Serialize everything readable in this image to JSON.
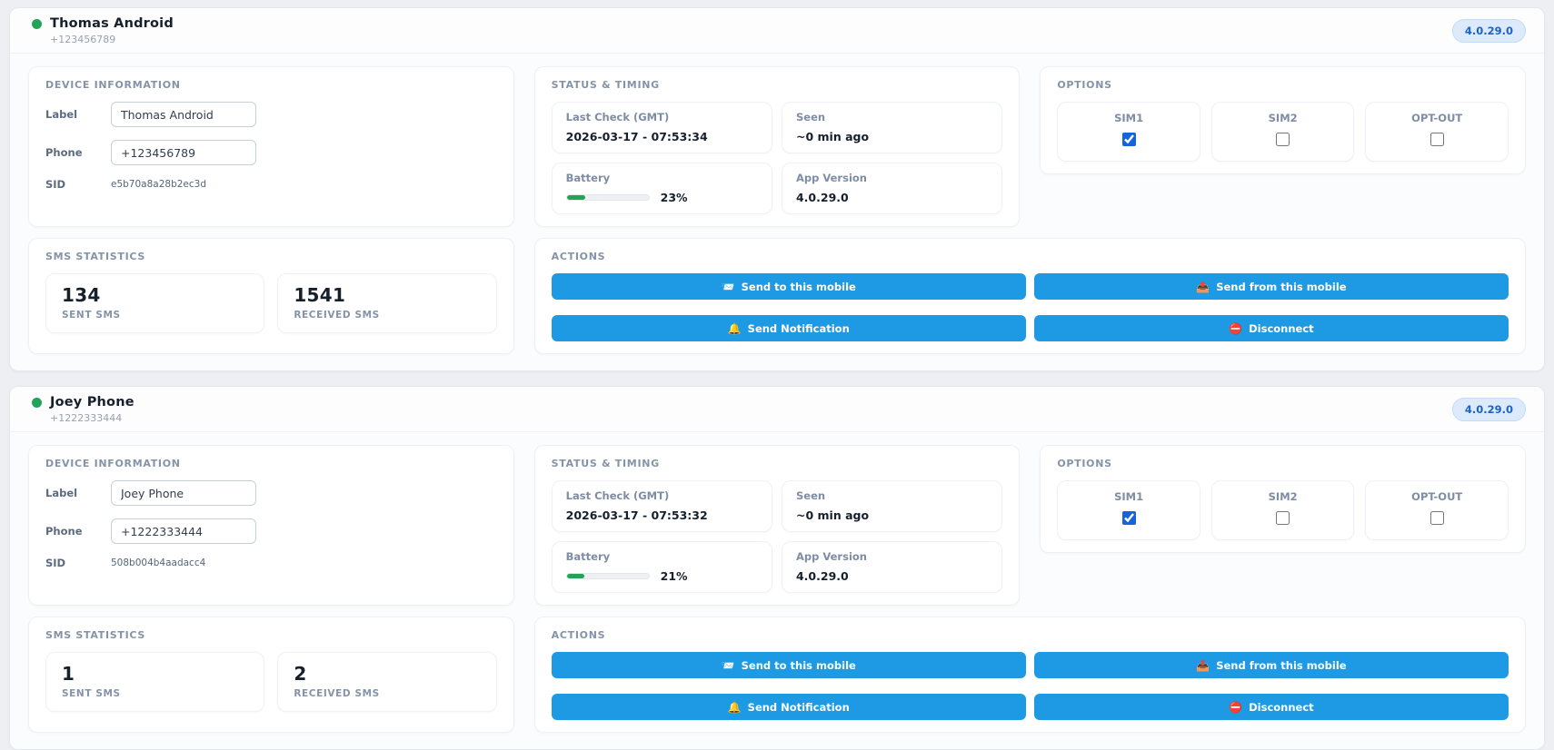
{
  "icons": {
    "send_to": "📨",
    "send_from": "📤",
    "notify": "🔔",
    "disconnect": "⛔"
  },
  "devices": [
    {
      "name": "Thomas Android",
      "phone": "+123456789",
      "version": "4.0.29.0",
      "device_info": {
        "title": "DEVICE INFORMATION",
        "label_label": "Label",
        "label_value": "Thomas Android",
        "phone_label": "Phone",
        "phone_value": "+123456789",
        "sid_label": "SID",
        "sid_value": "e5b70a8a28b2ec3d"
      },
      "status": {
        "title": "STATUS & TIMING",
        "last_check_label": "Last Check (GMT)",
        "last_check": "2026-03-17 - 07:53:34",
        "seen_label": "Seen",
        "seen": "~0 min ago",
        "battery_label": "Battery",
        "battery_percent": "23%",
        "app_version_label": "App Version",
        "app_version": "4.0.29.0"
      },
      "options": {
        "title": "OPTIONS",
        "sim1_label": "SIM1",
        "sim1_checked": true,
        "sim2_label": "SIM2",
        "sim2_checked": false,
        "optout_label": "OPT-OUT",
        "optout_checked": false
      },
      "sms": {
        "title": "SMS STATISTICS",
        "sent_value": "134",
        "sent_label": "SENT SMS",
        "received_value": "1541",
        "received_label": "RECEIVED SMS"
      },
      "actions": {
        "title": "ACTIONS",
        "send_to": "Send to this mobile",
        "send_from": "Send from this mobile",
        "notify": "Send Notification",
        "disconnect": "Disconnect"
      }
    },
    {
      "name": "Joey Phone",
      "phone": "+1222333444",
      "version": "4.0.29.0",
      "device_info": {
        "title": "DEVICE INFORMATION",
        "label_label": "Label",
        "label_value": "Joey Phone",
        "phone_label": "Phone",
        "phone_value": "+1222333444",
        "sid_label": "SID",
        "sid_value": "508b004b4aadacc4"
      },
      "status": {
        "title": "STATUS & TIMING",
        "last_check_label": "Last Check (GMT)",
        "last_check": "2026-03-17 - 07:53:32",
        "seen_label": "Seen",
        "seen": "~0 min ago",
        "battery_label": "Battery",
        "battery_percent": "21%",
        "app_version_label": "App Version",
        "app_version": "4.0.29.0"
      },
      "options": {
        "title": "OPTIONS",
        "sim1_label": "SIM1",
        "sim1_checked": true,
        "sim2_label": "SIM2",
        "sim2_checked": false,
        "optout_label": "OPT-OUT",
        "optout_checked": false
      },
      "sms": {
        "title": "SMS STATISTICS",
        "sent_value": "1",
        "sent_label": "SENT SMS",
        "received_value": "2",
        "received_label": "RECEIVED SMS"
      },
      "actions": {
        "title": "ACTIONS",
        "send_to": "Send to this mobile",
        "send_from": "Send from this mobile",
        "notify": "Send Notification",
        "disconnect": "Disconnect"
      }
    }
  ]
}
